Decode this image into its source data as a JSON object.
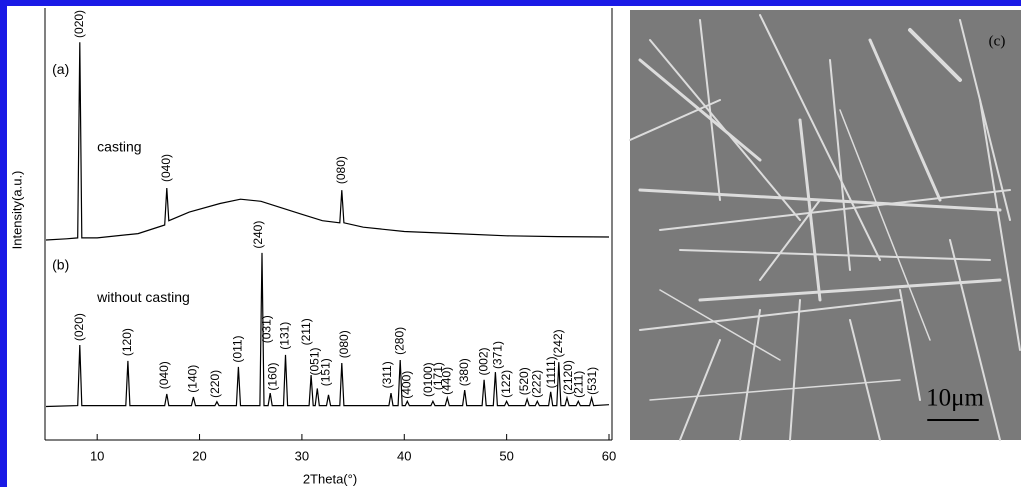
{
  "chart_data": {
    "type": "line",
    "xlabel": "2Theta(°)",
    "ylabel": "Intensity(a.u.)",
    "xlim": [
      5,
      60
    ],
    "xticks": [
      10,
      20,
      30,
      40,
      50,
      60
    ],
    "ylim": [
      0,
      100
    ],
    "series": [
      {
        "name": "casting",
        "color": "#000000",
        "x": [
          5,
          7,
          8.1,
          8.3,
          8.5,
          10,
          14,
          16.6,
          16.8,
          17.0,
          19,
          22,
          24,
          26,
          28,
          30,
          32,
          33.7,
          33.9,
          34.1,
          36,
          40,
          45,
          50,
          55,
          60
        ],
        "values": [
          46.5,
          46.8,
          47,
          92.5,
          47,
          47,
          48,
          50,
          58.6,
          51,
          53,
          55,
          56,
          55.5,
          54,
          52.5,
          51,
          50.5,
          58.1,
          50.5,
          49.5,
          48.5,
          48,
          47.5,
          47.3,
          47.2
        ],
        "peak_labels": [
          {
            "text": "(020)",
            "x": 8.3,
            "y": 93.5
          },
          {
            "text": "(040)",
            "x": 16.8,
            "y": 60
          },
          {
            "text": "(080)",
            "x": 33.9,
            "y": 59.5
          }
        ]
      },
      {
        "name": "without casting",
        "color": "#000000",
        "x": [
          5,
          8.1,
          8.3,
          8.5,
          12.8,
          13,
          13.2,
          16.6,
          16.8,
          17,
          19.2,
          19.4,
          19.6,
          21.5,
          21.7,
          21.9,
          23.6,
          23.8,
          24,
          25.9,
          26.1,
          26.3,
          26.7,
          26.9,
          27.1,
          28.2,
          28.4,
          28.6,
          30.7,
          30.9,
          31.1,
          31.3,
          31.5,
          31.7,
          32.4,
          32.6,
          32.8,
          33.7,
          33.9,
          34.1,
          38.5,
          38.7,
          38.9,
          39.4,
          39.6,
          39.8,
          40.1,
          40.3,
          40.5,
          42.6,
          42.8,
          43,
          44,
          44.2,
          44.4,
          45.7,
          45.9,
          46.1,
          47.6,
          47.8,
          48,
          48.7,
          48.9,
          49.1,
          49.8,
          50,
          50.2,
          51.8,
          52,
          52.2,
          52.8,
          53,
          53.2,
          54.1,
          54.3,
          54.5,
          54.9,
          55.1,
          55.3,
          55.7,
          55.9,
          56.1,
          56.8,
          57,
          57.2,
          58.1,
          58.3,
          58.5,
          60
        ],
        "values": [
          7.8,
          8,
          22.1,
          8,
          8,
          18.4,
          8,
          8,
          10.7,
          8,
          8,
          10,
          8,
          8,
          8.9,
          8,
          8,
          17,
          8,
          8,
          43.5,
          8,
          8,
          10.9,
          8,
          8,
          19.8,
          8,
          8,
          15.1,
          8,
          8,
          12,
          8,
          8,
          10.5,
          8,
          8,
          17.9,
          8,
          8,
          10.9,
          8,
          8,
          18.6,
          8,
          8,
          9,
          8,
          8,
          9,
          8,
          8,
          9.8,
          8,
          8,
          11.6,
          8,
          8,
          14,
          8,
          8,
          15.8,
          8,
          8,
          9,
          8,
          8,
          9.5,
          8,
          8,
          9,
          8,
          8,
          11.2,
          8,
          8,
          18.1,
          8,
          8,
          9.8,
          8,
          8,
          9,
          8,
          8,
          9.8,
          8,
          8.2
        ],
        "peak_labels": [
          {
            "text": "(020)",
            "x": 8.3,
            "y": 23
          },
          {
            "text": "(120)",
            "x": 13.0,
            "y": 19.5
          },
          {
            "text": "(040)",
            "x": 16.6,
            "y": 11.8
          },
          {
            "text": "(140)",
            "x": 19.4,
            "y": 11
          },
          {
            "text": "(220)",
            "x": 21.6,
            "y": 9.8
          },
          {
            "text": "(011)",
            "x": 23.8,
            "y": 18
          },
          {
            "text": "(240)",
            "x": 25.8,
            "y": 44.5
          },
          {
            "text": "(031)",
            "x": 26.6,
            "y": 22.5
          },
          {
            "text": "(160)",
            "x": 27.2,
            "y": 11.5
          },
          {
            "text": "(131)",
            "x": 28.4,
            "y": 21
          },
          {
            "text": "(211)",
            "x": 30.5,
            "y": 22
          },
          {
            "text": "(051)",
            "x": 31.3,
            "y": 15
          },
          {
            "text": "(151)",
            "x": 32.4,
            "y": 12.5
          },
          {
            "text": "(080)",
            "x": 34.2,
            "y": 19
          },
          {
            "text": "(311)",
            "x": 38.4,
            "y": 12
          },
          {
            "text": "(280)",
            "x": 39.6,
            "y": 19.8
          },
          {
            "text": "(400)",
            "x": 40.3,
            "y": 9.6
          },
          {
            "text": "(0100)",
            "x": 42.4,
            "y": 10
          },
          {
            "text": "(171)",
            "x": 43.4,
            "y": 11.6
          },
          {
            "text": "(440)",
            "x": 44.2,
            "y": 10.5
          },
          {
            "text": "(380)",
            "x": 45.9,
            "y": 12.5
          },
          {
            "text": "(002)",
            "x": 47.8,
            "y": 15
          },
          {
            "text": "(371)",
            "x": 49.2,
            "y": 16.5
          },
          {
            "text": "(122)",
            "x": 50.0,
            "y": 9.8
          },
          {
            "text": "(520)",
            "x": 51.8,
            "y": 10.4
          },
          {
            "text": "(222)",
            "x": 53.0,
            "y": 9.8
          },
          {
            "text": "(1111)",
            "x": 54.4,
            "y": 12
          },
          {
            "text": "(242)",
            "x": 55.1,
            "y": 19.2
          },
          {
            "text": "(2120)",
            "x": 56.1,
            "y": 10.5
          },
          {
            "text": "(211)",
            "x": 57.1,
            "y": 9.8
          },
          {
            "text": "(531)",
            "x": 58.4,
            "y": 10.5
          }
        ]
      }
    ],
    "labels": [
      {
        "text": "(a)",
        "x": 5.6,
        "y": 86
      },
      {
        "text": "casting",
        "x": 10,
        "y": 68
      },
      {
        "text": "(b)",
        "x": 5.6,
        "y": 40.5
      },
      {
        "text": "without casting",
        "x": 10,
        "y": 33
      }
    ],
    "image_panel": {
      "label": "(c)",
      "scale_bar": "10μm"
    }
  }
}
